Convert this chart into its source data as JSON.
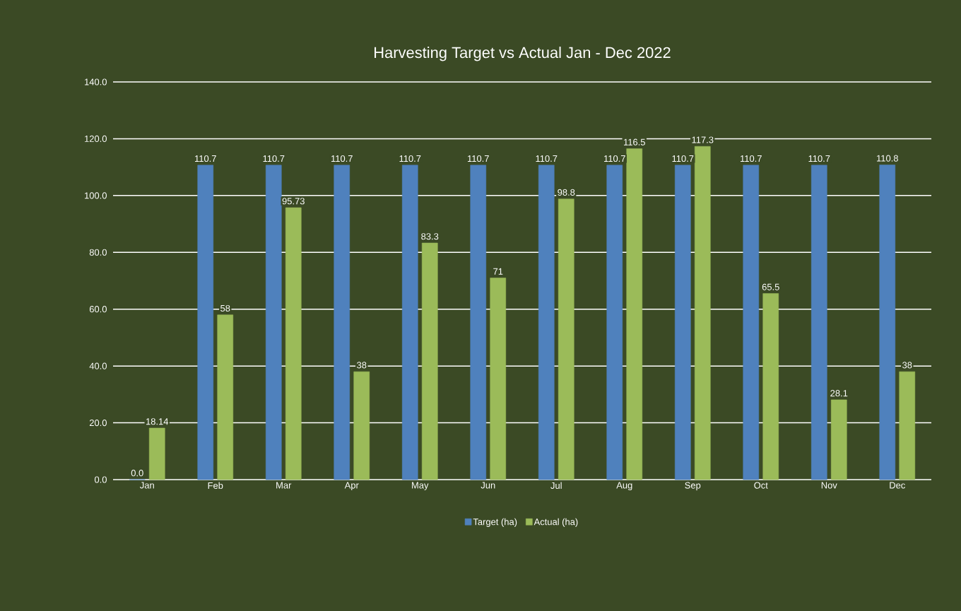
{
  "chart_data": {
    "type": "bar",
    "title": "Harvesting Target vs Actual Jan - Dec 2022",
    "categories": [
      "Jan",
      "Feb",
      "Mar",
      "Apr",
      "May",
      "Jun",
      "Jul",
      "Aug",
      "Sep",
      "Oct",
      "Nov",
      "Dec"
    ],
    "series": [
      {
        "name": "Target (ha)",
        "color": "#4f81bd",
        "values": [
          0.0,
          110.7,
          110.7,
          110.7,
          110.7,
          110.7,
          110.7,
          110.7,
          110.7,
          110.7,
          110.7,
          110.8
        ],
        "value_labels": [
          "0.0",
          "110.7",
          "110.7",
          "110.7",
          "110.7",
          "110.7",
          "110.7",
          "110.7",
          "110.7",
          "110.7",
          "110.7",
          "110.8"
        ]
      },
      {
        "name": "Actual (ha)",
        "color": "#9bbb59",
        "values": [
          18.14,
          58,
          95.73,
          38,
          83.3,
          71,
          98.8,
          116.5,
          117.3,
          65.5,
          28.1,
          38
        ],
        "value_labels": [
          "18.14",
          "58",
          "95.73",
          "38",
          "83.3",
          "71",
          "98.8",
          "116.5",
          "117.3",
          "65.5",
          "28.1",
          "38"
        ]
      }
    ],
    "ylim": [
      0,
      140
    ],
    "yticks": [
      {
        "value": 0,
        "label": "0.0"
      },
      {
        "value": 20,
        "label": "20.0"
      },
      {
        "value": 40,
        "label": "40.0"
      },
      {
        "value": 60,
        "label": "60.0"
      },
      {
        "value": 80,
        "label": "80.0"
      },
      {
        "value": 100,
        "label": "100.0"
      },
      {
        "value": 120,
        "label": "120.0"
      },
      {
        "value": 140,
        "label": "140.0"
      }
    ],
    "grid": "y",
    "legend": "bottom"
  }
}
